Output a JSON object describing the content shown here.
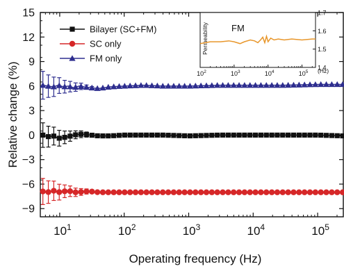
{
  "chart_data": [
    {
      "type": "line",
      "xscale": "log",
      "xlabel": "Operating frequency (Hz)",
      "ylabel": "Relative change (%)",
      "xlim": [
        5,
        250000
      ],
      "ylim": [
        -10,
        15
      ],
      "xticks": [
        10,
        100,
        1000,
        10000,
        100000
      ],
      "xtick_labels": [
        {
          "base": "10",
          "exp": "1"
        },
        {
          "base": "10",
          "exp": "2"
        },
        {
          "base": "10",
          "exp": "3"
        },
        {
          "base": "10",
          "exp": "4"
        },
        {
          "base": "10",
          "exp": "5"
        }
      ],
      "yticks": [
        -9,
        -6,
        -3,
        0,
        3,
        6,
        9,
        12,
        15
      ],
      "ytick_labels": [
        "−9",
        "−6",
        "−3",
        "0",
        "3",
        "6",
        "9",
        "12",
        "15"
      ],
      "grid": false,
      "legend_position": "top-left",
      "series": [
        {
          "name": "Bilayer (SC+FM)",
          "color": "#111111",
          "marker": "square",
          "x": [
            5.5,
            6.5,
            8,
            9.5,
            11.5,
            13.5,
            16.5,
            20,
            24,
            30,
            40,
            60,
            100,
            200,
            400,
            1000,
            3000,
            10000,
            30000,
            100000,
            250000
          ],
          "y": [
            0.0,
            -0.2,
            -0.1,
            -0.4,
            -0.3,
            -0.2,
            0.0,
            0.1,
            0.1,
            0.0,
            -0.1,
            -0.1,
            0.0,
            0.0,
            0.0,
            -0.1,
            0.0,
            0.0,
            0.0,
            0.0,
            -0.1
          ],
          "err": [
            1.5,
            1.3,
            1.1,
            1.0,
            0.8,
            0.7,
            0.5,
            0.45,
            0.35,
            0.25,
            0.0,
            0.0,
            0.0,
            0.0,
            0.0,
            0.0,
            0.0,
            0.0,
            0.0,
            0.0,
            0.0
          ]
        },
        {
          "name": "SC only",
          "color": "#d62728",
          "marker": "circle",
          "x": [
            5.5,
            6.5,
            8,
            9.5,
            11.5,
            13.5,
            16.5,
            20,
            24,
            30,
            40,
            60,
            100,
            200,
            400,
            1000,
            3000,
            10000,
            30000,
            100000,
            250000
          ],
          "y": [
            -6.9,
            -7.0,
            -6.8,
            -7.0,
            -6.9,
            -6.8,
            -7.0,
            -7.0,
            -6.9,
            -6.9,
            -7.0,
            -7.0,
            -7.0,
            -7.0,
            -7.0,
            -7.0,
            -7.0,
            -7.0,
            -7.0,
            -7.0,
            -7.0
          ],
          "err": [
            1.6,
            1.4,
            1.2,
            1.0,
            0.8,
            0.7,
            0.55,
            0.45,
            0.35,
            0.25,
            0.0,
            0.0,
            0.0,
            0.0,
            0.0,
            0.0,
            0.0,
            0.0,
            0.0,
            0.0,
            0.0
          ]
        },
        {
          "name": "FM only",
          "color": "#2e2e8f",
          "marker": "triangle",
          "x": [
            5.5,
            6.5,
            8,
            9.5,
            11.5,
            13.5,
            16.5,
            20,
            24,
            30,
            40,
            60,
            100,
            200,
            400,
            1000,
            3000,
            10000,
            30000,
            100000,
            250000
          ],
          "y": [
            6.1,
            6.0,
            5.9,
            6.1,
            5.9,
            6.0,
            5.8,
            6.0,
            5.9,
            5.8,
            5.7,
            5.9,
            6.0,
            6.1,
            6.0,
            6.0,
            6.1,
            6.1,
            6.1,
            6.2,
            6.2
          ],
          "err": [
            1.7,
            1.4,
            1.2,
            1.0,
            0.8,
            0.7,
            0.55,
            0.45,
            0.3,
            0.2,
            0.0,
            0.0,
            0.0,
            0.0,
            0.0,
            0.0,
            0.0,
            0.0,
            0.0,
            0.0,
            0.0
          ]
        }
      ]
    },
    {
      "type": "line",
      "title": "FM",
      "xscale": "log",
      "xlabel": "(Hz)",
      "ylabel": "Permeability",
      "xlim": [
        100,
        250000
      ],
      "ylim": [
        1.4,
        1.7
      ],
      "xticks": [
        100,
        1000,
        10000,
        100000
      ],
      "xtick_labels": [
        {
          "base": "10",
          "exp": "2"
        },
        {
          "base": "10",
          "exp": "3"
        },
        {
          "base": "10",
          "exp": "4"
        },
        {
          "base": "10",
          "exp": "5"
        }
      ],
      "yticks": [
        1.4,
        1.5,
        1.6,
        1.7
      ],
      "ytick_labels": [
        "1.4",
        "1.5",
        "1.6",
        "1.7"
      ],
      "series": [
        {
          "color": "#e8962a",
          "x": [
            100,
            200,
            400,
            700,
            1000,
            1500,
            2000,
            3000,
            4000,
            5000,
            6000,
            7000,
            8000,
            9000,
            10000,
            12000,
            15000,
            20000,
            30000,
            50000,
            100000,
            200000,
            250000
          ],
          "y": [
            1.53,
            1.54,
            1.54,
            1.545,
            1.54,
            1.53,
            1.54,
            1.55,
            1.545,
            1.535,
            1.55,
            1.565,
            1.535,
            1.57,
            1.54,
            1.56,
            1.55,
            1.555,
            1.55,
            1.555,
            1.55,
            1.555,
            1.555
          ]
        }
      ]
    }
  ]
}
